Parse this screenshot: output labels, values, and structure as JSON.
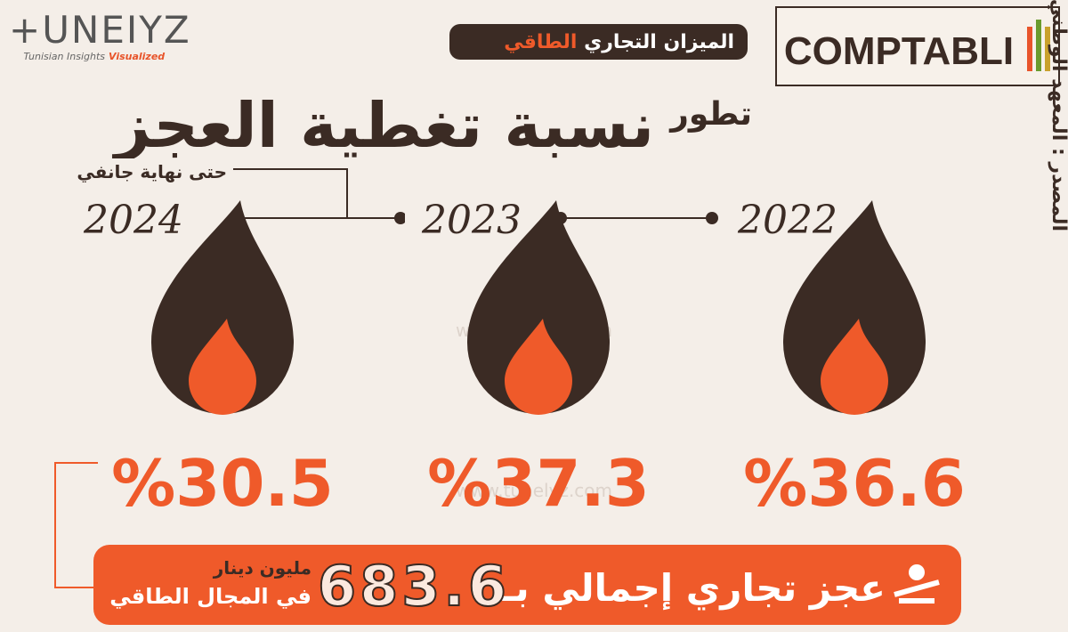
{
  "header": {
    "logo": "+UNEIYZ",
    "logo_tagline": "Tunisian Insights",
    "logo_tagline_accent": "Visualized",
    "badge": "الميزان التجاري",
    "badge_accent": "الطاقي",
    "partner": "COMPTABLI"
  },
  "title": {
    "prefix": "تطور",
    "main": "نسبة تغطية العجز",
    "period": "حتى نهاية جانفي"
  },
  "years": [
    {
      "year": "2024",
      "rate": "%30.5"
    },
    {
      "year": "2023",
      "rate": "%37.3"
    },
    {
      "year": "2022",
      "rate": "%36.6"
    }
  ],
  "deficit": {
    "label": "عجز تجاري إجمالي بـ",
    "amount": "683.6",
    "unit": "مليون دينار",
    "scope": "في المجال الطاقي"
  },
  "source": "المصدر : المعهد الوطني للإحصاء",
  "watermark": "www.tunelyz.com"
}
